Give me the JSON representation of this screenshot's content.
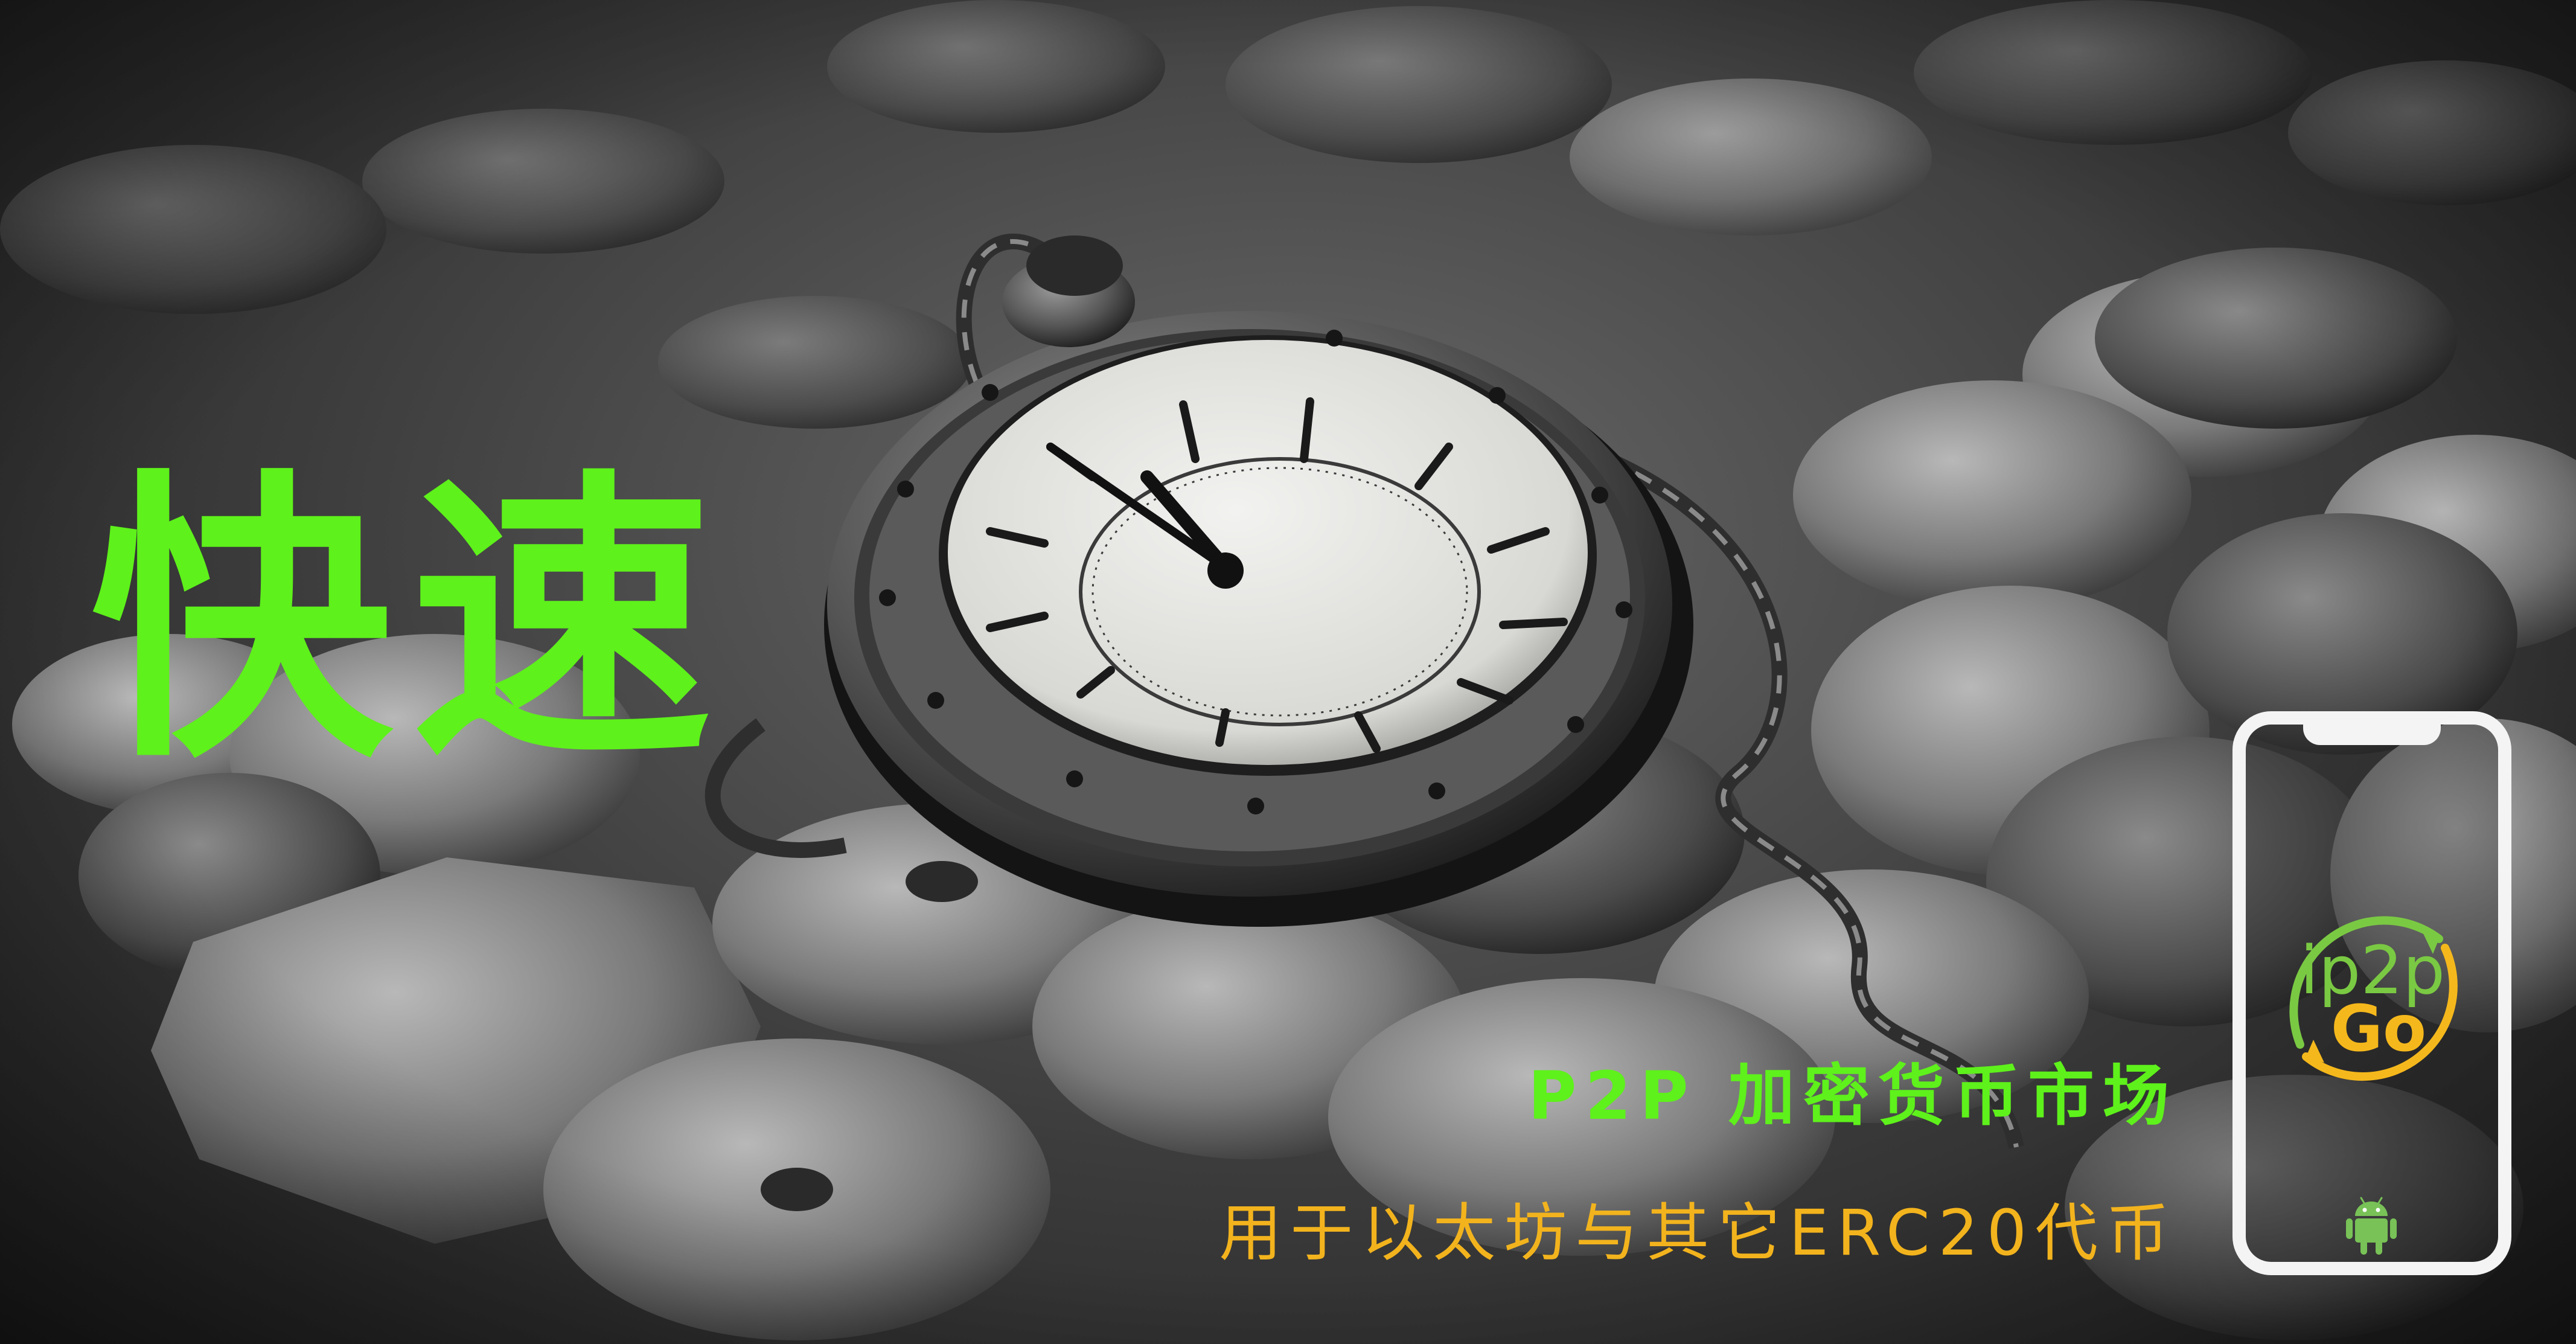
{
  "banner": {
    "headline": "快速",
    "subtitle": "P2P 加密货币市场",
    "tagline": "用于以太坊与其它ERC20代币"
  },
  "phone": {
    "logo": {
      "lettering_top": "ip2p",
      "lettering_bottom": "Go"
    },
    "platform_icon": "android-icon"
  },
  "colors": {
    "headline": "#5ef11b",
    "subtitle": "#5ef11b",
    "tagline": "#f2b31d",
    "logo_green": "#7ac943",
    "logo_yellow": "#f5b81c",
    "android_green": "#78c257",
    "phone_frame": "#f4f4f4"
  },
  "icons": [
    "pocket-watch-image",
    "coins-image",
    "app-logo-icon",
    "android-icon"
  ]
}
